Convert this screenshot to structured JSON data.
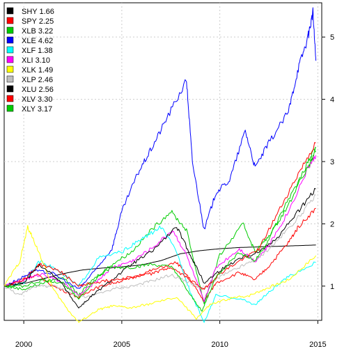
{
  "chart_data": {
    "type": "line",
    "title": "",
    "xlabel": "",
    "ylabel": "",
    "xlim": [
      1999.0,
      2015.2
    ],
    "ylim": [
      0.45,
      5.55
    ],
    "x_ticks": [
      2000,
      2005,
      2010,
      2015
    ],
    "x_tick_labels": [
      "2000",
      "2005",
      "2010",
      "2015"
    ],
    "y_ticks": [
      1,
      2,
      3,
      4,
      5
    ],
    "y_tick_labels": [
      "1",
      "2",
      "3",
      "4",
      "5"
    ],
    "grid": true,
    "legend_position": "top-left",
    "series": [
      {
        "name": "SHY 1.66",
        "color": "#000000",
        "x": [
          1999.0,
          2000.0,
          2001.0,
          2002.0,
          2003.0,
          2004.0,
          2005.0,
          2006.0,
          2007.0,
          2008.0,
          2009.0,
          2010.0,
          2011.0,
          2012.0,
          2013.0,
          2014.0,
          2014.9
        ],
        "values": [
          1.0,
          1.04,
          1.12,
          1.2,
          1.26,
          1.29,
          1.31,
          1.34,
          1.41,
          1.52,
          1.57,
          1.6,
          1.62,
          1.63,
          1.64,
          1.65,
          1.66
        ]
      },
      {
        "name": "SPY 2.25",
        "color": "#ff0000",
        "x": [
          1999.0,
          2000.0,
          2000.7,
          2001.5,
          2002.8,
          2003.5,
          2004.5,
          2005.5,
          2006.5,
          2007.8,
          2008.5,
          2009.2,
          2009.8,
          2011.0,
          2011.8,
          2012.5,
          2013.5,
          2014.0,
          2014.9
        ],
        "values": [
          1.0,
          1.12,
          1.18,
          1.0,
          0.82,
          0.95,
          1.05,
          1.12,
          1.25,
          1.38,
          1.1,
          0.75,
          1.05,
          1.22,
          1.1,
          1.32,
          1.7,
          1.95,
          2.25
        ]
      },
      {
        "name": "XLB 3.22",
        "color": "#00cc00",
        "x": [
          1999.0,
          2000.0,
          2001.0,
          2002.0,
          2002.8,
          2003.5,
          2004.5,
          2005.5,
          2006.5,
          2007.5,
          2008.3,
          2009.2,
          2010.0,
          2011.2,
          2011.8,
          2012.5,
          2013.5,
          2014.5,
          2014.9
        ],
        "values": [
          1.0,
          0.95,
          1.05,
          1.15,
          0.85,
          1.1,
          1.35,
          1.55,
          1.9,
          2.2,
          1.9,
          0.72,
          1.5,
          2.0,
          1.55,
          1.8,
          2.3,
          3.0,
          3.22
        ]
      },
      {
        "name": "XLE 4.62",
        "color": "#0000ff",
        "x": [
          1999.0,
          2000.0,
          2000.5,
          2001.5,
          2002.8,
          2003.5,
          2004.5,
          2005.0,
          2005.8,
          2006.5,
          2007.3,
          2008.3,
          2008.6,
          2009.2,
          2009.8,
          2010.5,
          2011.3,
          2011.8,
          2012.5,
          2013.5,
          2014.0,
          2014.5,
          2014.75,
          2014.9
        ],
        "values": [
          1.0,
          1.15,
          1.25,
          1.2,
          0.95,
          1.2,
          1.6,
          2.2,
          2.8,
          3.2,
          3.7,
          4.3,
          3.0,
          1.9,
          2.5,
          2.7,
          3.5,
          2.9,
          3.3,
          3.8,
          4.5,
          5.0,
          5.4,
          4.62
        ]
      },
      {
        "name": "XLF 1.38",
        "color": "#00ffff",
        "x": [
          1999.0,
          2000.0,
          2000.8,
          2001.5,
          2002.8,
          2003.8,
          2005.0,
          2006.0,
          2007.0,
          2007.8,
          2008.5,
          2009.2,
          2009.8,
          2011.0,
          2011.8,
          2012.5,
          2013.5,
          2014.9
        ],
        "values": [
          1.0,
          1.05,
          1.4,
          1.3,
          1.0,
          1.45,
          1.55,
          1.75,
          1.95,
          1.55,
          0.9,
          0.42,
          0.85,
          0.8,
          0.7,
          0.9,
          1.15,
          1.38
        ]
      },
      {
        "name": "XLI 3.10",
        "color": "#ff00ff",
        "x": [
          1999.0,
          2000.0,
          2001.0,
          2002.0,
          2002.8,
          2003.8,
          2004.5,
          2005.5,
          2006.5,
          2007.6,
          2008.3,
          2009.2,
          2009.8,
          2011.0,
          2011.8,
          2012.5,
          2013.5,
          2014.5,
          2014.9
        ],
        "values": [
          1.0,
          1.1,
          1.2,
          1.05,
          0.85,
          1.1,
          1.3,
          1.4,
          1.6,
          1.9,
          1.5,
          0.75,
          1.3,
          1.6,
          1.4,
          1.65,
          2.2,
          2.9,
          3.1
        ]
      },
      {
        "name": "XLK 1.49",
        "color": "#ffff00",
        "x": [
          1999.0,
          1999.8,
          2000.2,
          2000.7,
          2001.5,
          2002.3,
          2002.8,
          2003.8,
          2004.5,
          2005.5,
          2006.5,
          2007.8,
          2008.8,
          2009.5,
          2010.5,
          2011.5,
          2012.5,
          2013.5,
          2014.9
        ],
        "values": [
          1.0,
          1.4,
          1.95,
          1.6,
          0.95,
          0.6,
          0.42,
          0.62,
          0.68,
          0.65,
          0.72,
          0.82,
          0.48,
          0.7,
          0.8,
          0.85,
          0.98,
          1.1,
          1.49
        ]
      },
      {
        "name": "XLP 2.46",
        "color": "#bebebe",
        "x": [
          1999.0,
          1999.8,
          2000.5,
          2001.5,
          2002.5,
          2003.2,
          2004.5,
          2005.5,
          2006.5,
          2007.5,
          2008.5,
          2009.2,
          2010.0,
          2011.0,
          2012.0,
          2013.0,
          2014.0,
          2014.9
        ],
        "values": [
          1.0,
          0.85,
          1.0,
          1.0,
          0.88,
          0.82,
          0.95,
          1.0,
          1.08,
          1.18,
          1.05,
          0.95,
          1.15,
          1.3,
          1.45,
          1.75,
          2.1,
          2.46
        ]
      },
      {
        "name": "XLU 2.56",
        "color": "#000000",
        "x": [
          1999.0,
          2000.0,
          2000.8,
          2001.8,
          2002.8,
          2003.5,
          2004.5,
          2005.5,
          2006.5,
          2007.8,
          2008.5,
          2009.2,
          2010.0,
          2011.0,
          2012.0,
          2013.0,
          2014.0,
          2014.9
        ],
        "values": [
          1.0,
          1.05,
          1.35,
          1.1,
          0.65,
          0.85,
          1.1,
          1.35,
          1.55,
          1.95,
          1.5,
          1.05,
          1.25,
          1.45,
          1.55,
          1.8,
          2.2,
          2.56
        ]
      },
      {
        "name": "XLV 3.30",
        "color": "#ff0000",
        "x": [
          1999.0,
          2000.0,
          2000.8,
          2001.8,
          2002.8,
          2003.5,
          2004.5,
          2005.5,
          2006.5,
          2007.5,
          2008.5,
          2009.2,
          2010.0,
          2011.0,
          2012.0,
          2013.0,
          2014.0,
          2014.9
        ],
        "values": [
          1.0,
          1.1,
          1.35,
          1.25,
          1.0,
          1.05,
          1.1,
          1.15,
          1.2,
          1.3,
          1.1,
          0.95,
          1.2,
          1.4,
          1.6,
          2.2,
          2.8,
          3.3
        ]
      },
      {
        "name": "XLY 3.17",
        "color": "#00cc00",
        "x": [
          1999.0,
          2000.0,
          2001.0,
          2002.0,
          2002.8,
          2003.8,
          2004.5,
          2005.5,
          2006.5,
          2007.6,
          2008.5,
          2009.1,
          2009.8,
          2011.0,
          2011.8,
          2012.5,
          2013.5,
          2014.5,
          2014.9
        ],
        "values": [
          1.0,
          1.0,
          1.1,
          1.05,
          0.8,
          1.15,
          1.3,
          1.3,
          1.35,
          1.3,
          0.85,
          0.6,
          1.15,
          1.55,
          1.4,
          1.75,
          2.4,
          2.9,
          3.17
        ]
      }
    ]
  }
}
